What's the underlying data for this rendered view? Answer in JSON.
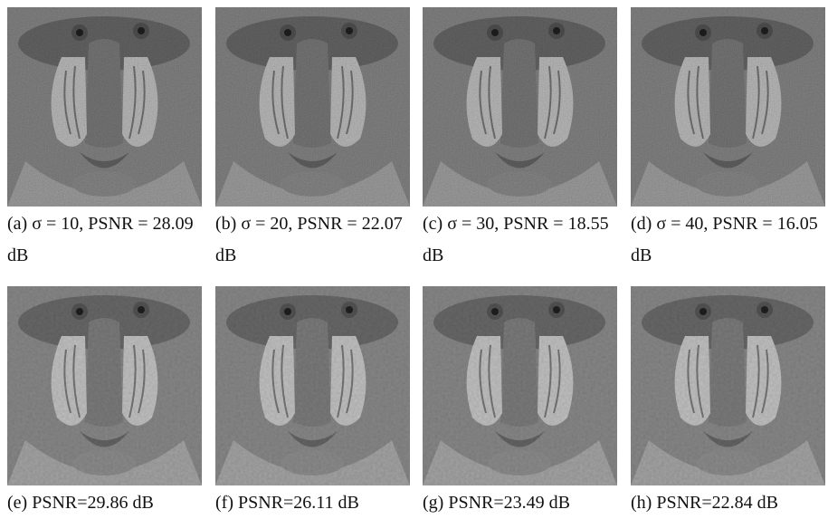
{
  "figure": {
    "panels": [
      {
        "caption": "(a) σ = 10, PSNR = 28.09 dB"
      },
      {
        "caption": "(b) σ = 20, PSNR = 22.07 dB"
      },
      {
        "caption": "(c) σ = 30, PSNR = 18.55 dB"
      },
      {
        "caption": "(d) σ = 40, PSNR = 16.05 dB"
      },
      {
        "caption": "(e) PSNR=29.86 dB"
      },
      {
        "caption": "(f) PSNR=26.11 dB"
      },
      {
        "caption": "(g) PSNR=23.49 dB"
      },
      {
        "caption": "(h) PSNR=22.84 dB"
      }
    ]
  }
}
